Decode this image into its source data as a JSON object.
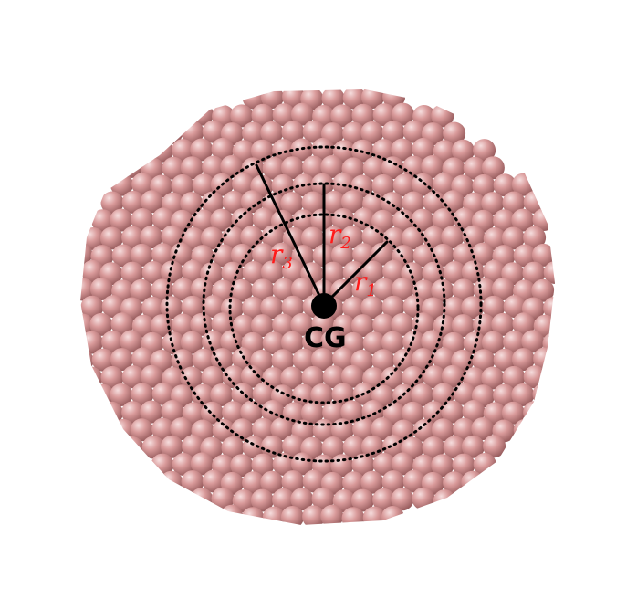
{
  "labels": {
    "center": "CG",
    "radius_symbol": "r",
    "radius_1_index": "1",
    "radius_2_index": "2",
    "radius_3_index": "3"
  },
  "colors": {
    "atom_base": "#d99a9a",
    "atom_highlight": "#f6dede",
    "atom_shadow": "#9a5f60",
    "circle_stroke": "#000000",
    "label_color": "#ff1a1a",
    "center_dot": "#000000"
  },
  "shells": [
    "r1",
    "r2",
    "r3"
  ]
}
